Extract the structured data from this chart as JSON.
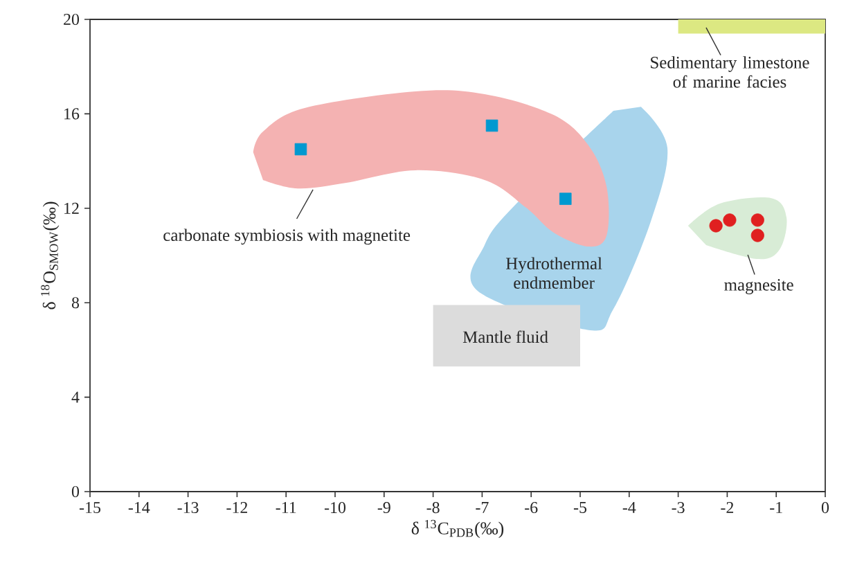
{
  "chart_data": {
    "type": "scatter",
    "xlabel": "δ $^{13}$C$_{PDB}$(‰)",
    "ylabel": "δ $^{18}$O$_{SMOW}$(‰)",
    "xlim": [
      -15,
      0
    ],
    "xticks": [
      -15,
      -14,
      -13,
      -12,
      -11,
      -10,
      -9,
      -8,
      -7,
      -6,
      -5,
      -4,
      -3,
      -2,
      -1,
      0
    ],
    "ylim": [
      0,
      20
    ],
    "yticks": [
      0,
      4,
      8,
      12,
      16,
      20
    ],
    "series": [
      {
        "type": "area",
        "color": "#a8d4ec",
        "x": [
          -3.76,
          -3.22,
          -3.56,
          -4.32,
          -4.85,
          -7.09,
          -6.95,
          -6.3,
          -4.32
        ],
        "values": [
          16.3,
          14.55,
          11.44,
          7.74,
          6.85,
          8.5,
          10.44,
          12.2,
          16.13
        ]
      },
      {
        "type": "area",
        "color": "#dcdcdc",
        "x": [
          -8,
          -5,
          -5,
          -8
        ],
        "values": [
          5.3,
          5.3,
          7.9,
          7.9
        ]
      },
      {
        "type": "area",
        "color": "#f4b2b2",
        "x": [
          -11.67,
          -11.47,
          -10.62,
          -8.36,
          -6.95,
          -5.54,
          -4.83,
          -4.46,
          -4.46,
          -4.83,
          -5.54,
          -6.1,
          -6.95,
          -8.36,
          -9.77,
          -10.76,
          -11.47
        ],
        "values": [
          14.37,
          15.25,
          16.25,
          16.95,
          16.83,
          15.95,
          14.66,
          12.9,
          10.85,
          10.38,
          10.97,
          12.02,
          13.2,
          13.61,
          13.08,
          12.84,
          13.2
        ]
      },
      {
        "type": "area",
        "color": "#d8ecd6",
        "x": [
          -2.8,
          -2.15,
          -1.1,
          -0.79,
          -0.93,
          -1.38,
          -2.43
        ],
        "values": [
          11.26,
          12.2,
          12.43,
          11.61,
          10.26,
          9.85,
          10.44
        ]
      },
      {
        "type": "area",
        "color": "#dce882",
        "x": [
          -3,
          0,
          0,
          -3
        ],
        "values": [
          19.4,
          19.4,
          20,
          20
        ]
      },
      {
        "marker": "square",
        "color": "#0099d0",
        "x": [
          -10.7,
          -6.8,
          -5.3
        ],
        "values": [
          14.5,
          15.5,
          12.4
        ]
      },
      {
        "marker": "circle",
        "color": "#e02020",
        "x": [
          -2.23,
          -1.95,
          -1.38,
          -1.38
        ],
        "values": [
          11.26,
          11.5,
          11.5,
          10.85
        ]
      }
    ],
    "annotations": [
      {
        "text": "carbonate symbiosis with  magnetite",
        "x": -10.45,
        "y": 12.79
      },
      "Hydrothermal endmember",
      "Mantle  fluid",
      {
        "text": "magnesite",
        "x": -1.58,
        "y": 10.03
      },
      {
        "text": "Sedimentary limestone of marine facies",
        "x": -2.43,
        "y": 19.65
      }
    ]
  }
}
